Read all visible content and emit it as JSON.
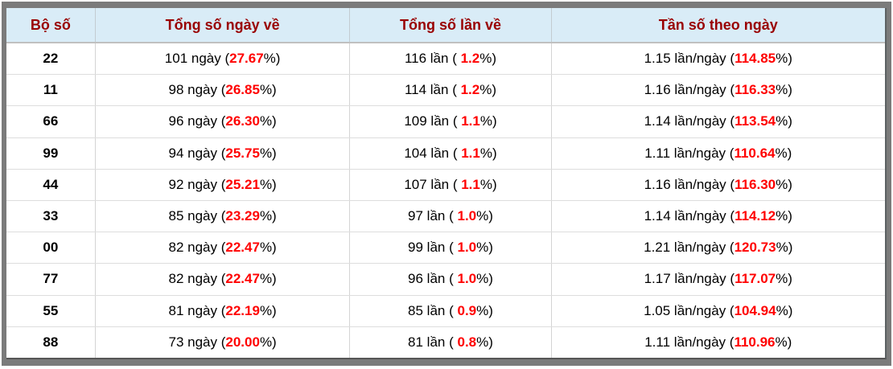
{
  "table": {
    "columns": [
      {
        "label": "Bộ số"
      },
      {
        "label": "Tổng số ngày về"
      },
      {
        "label": "Tổng số lần về"
      },
      {
        "label": "Tần số theo ngày"
      }
    ],
    "units": {
      "days": "ngày",
      "times": "lần",
      "freq": "lần/ngày"
    },
    "rows": [
      {
        "number": "22",
        "days": "101",
        "days_pct": "27.67",
        "times": "116",
        "times_pct": "1.2",
        "freq": "1.15",
        "freq_pct": "114.85"
      },
      {
        "number": "11",
        "days": "98",
        "days_pct": "26.85",
        "times": "114",
        "times_pct": "1.2",
        "freq": "1.16",
        "freq_pct": "116.33"
      },
      {
        "number": "66",
        "days": "96",
        "days_pct": "26.30",
        "times": "109",
        "times_pct": "1.1",
        "freq": "1.14",
        "freq_pct": "113.54"
      },
      {
        "number": "99",
        "days": "94",
        "days_pct": "25.75",
        "times": "104",
        "times_pct": "1.1",
        "freq": "1.11",
        "freq_pct": "110.64"
      },
      {
        "number": "44",
        "days": "92",
        "days_pct": "25.21",
        "times": "107",
        "times_pct": "1.1",
        "freq": "1.16",
        "freq_pct": "116.30"
      },
      {
        "number": "33",
        "days": "85",
        "days_pct": "23.29",
        "times": "97",
        "times_pct": "1.0",
        "freq": "1.14",
        "freq_pct": "114.12"
      },
      {
        "number": "00",
        "days": "82",
        "days_pct": "22.47",
        "times": "99",
        "times_pct": "1.0",
        "freq": "1.21",
        "freq_pct": "120.73"
      },
      {
        "number": "77",
        "days": "82",
        "days_pct": "22.47",
        "times": "96",
        "times_pct": "1.0",
        "freq": "1.17",
        "freq_pct": "117.07"
      },
      {
        "number": "55",
        "days": "81",
        "days_pct": "22.19",
        "times": "85",
        "times_pct": "0.9",
        "freq": "1.05",
        "freq_pct": "104.94"
      },
      {
        "number": "88",
        "days": "73",
        "days_pct": "20.00",
        "times": "81",
        "times_pct": "0.8",
        "freq": "1.11",
        "freq_pct": "110.96"
      }
    ]
  },
  "colors": {
    "header_bg": "#d9ecf7",
    "header_text": "#990000",
    "accent_red": "#ff0000",
    "frame_gray": "#7b7b7b"
  }
}
